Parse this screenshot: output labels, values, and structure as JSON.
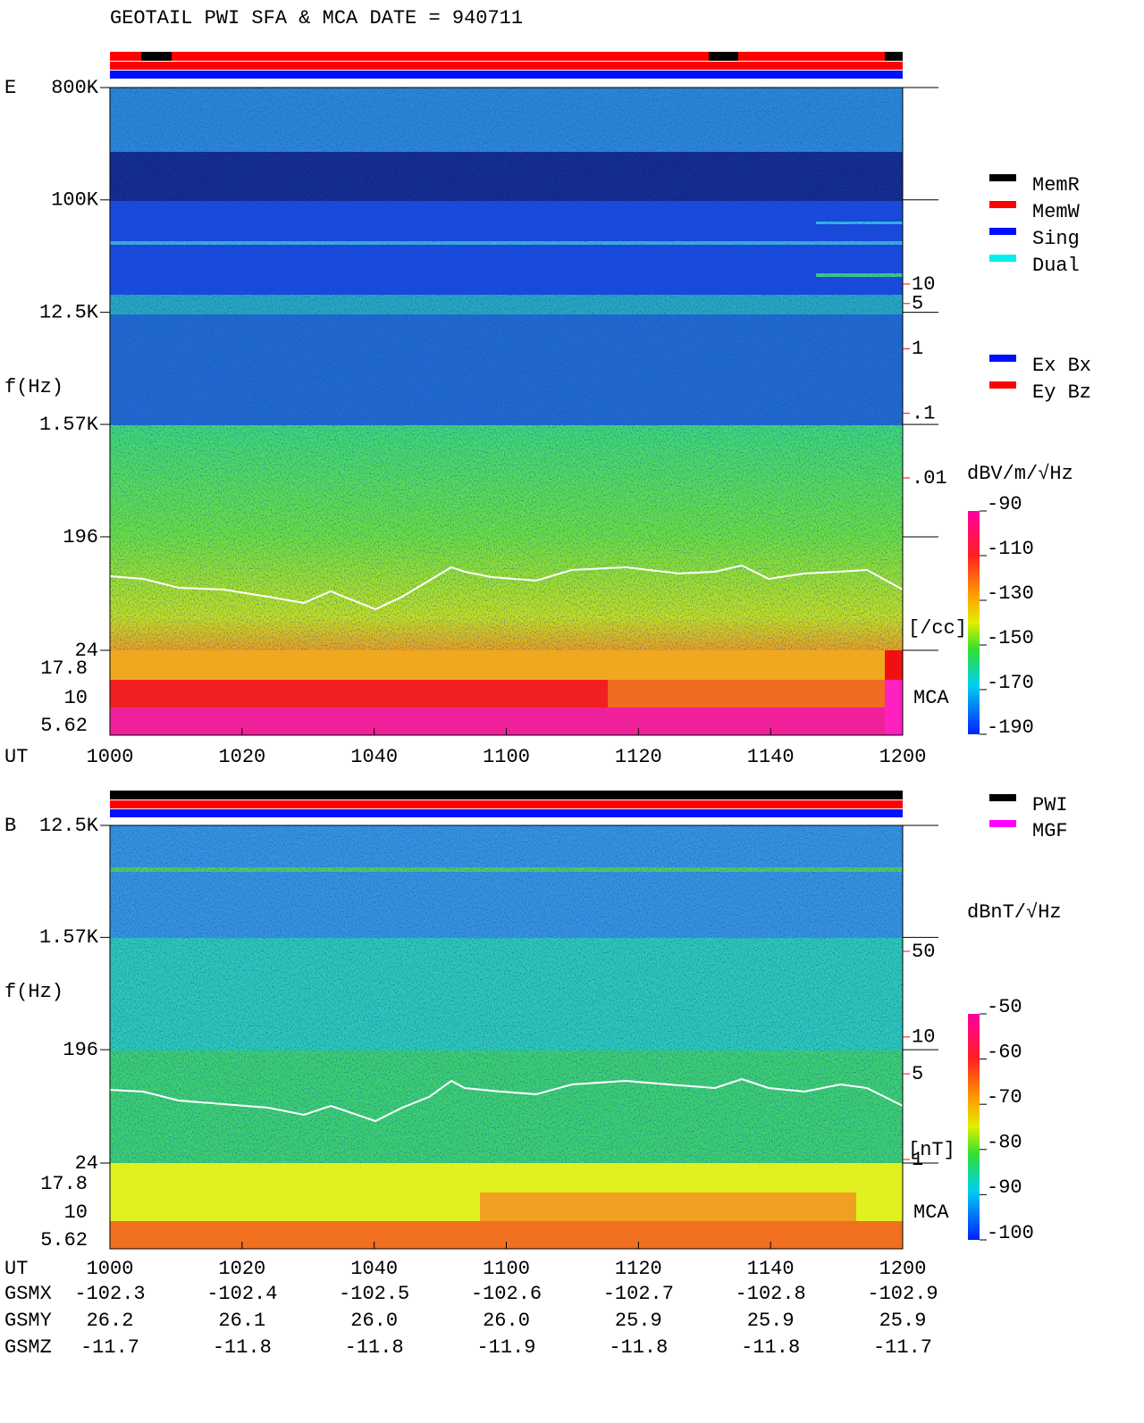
{
  "header": {
    "title": "GEOTAIL  PWI SFA & MCA   DATE = 940711"
  },
  "chart_data": [
    {
      "type": "spectrogram",
      "panel_label": "E",
      "y_label": "f(Hz)",
      "x_label": "UT",
      "log_scale": true,
      "ylim": [
        24,
        800000
      ],
      "yticks": [
        {
          "value": 800000,
          "label": "800K"
        },
        {
          "value": 100000,
          "label": "100K"
        },
        {
          "value": 12500,
          "label": "12.5K"
        },
        {
          "value": 1570,
          "label": "1.57K"
        },
        196,
        24
      ],
      "mca_label": "MCA",
      "mca_channels": [
        17.8,
        10,
        5.62
      ],
      "categories": [
        "1000",
        "1020",
        "1040",
        "1100",
        "1120",
        "1140",
        "1200"
      ],
      "y2_label": "[/cc]",
      "y2lim": [
        0.01,
        10
      ],
      "y2ticks": [
        10,
        5,
        1,
        {
          "value": 0.1,
          "label": ".1"
        },
        {
          "value": 0.01,
          "label": ".01"
        }
      ],
      "colorbar": {
        "label": "dBV/m/√Hz",
        "lim": [
          -190,
          -90
        ],
        "ticks": [
          -90,
          -110,
          -130,
          -150,
          -170,
          -190
        ]
      },
      "legends": [
        [
          {
            "name": "MemR",
            "color": "#000000"
          },
          {
            "name": "MemW",
            "color": "#ff0000"
          },
          {
            "name": "Sing",
            "color": "#0010ff"
          },
          {
            "name": "Dual",
            "color": "#00f0f0"
          }
        ],
        [
          {
            "name": "Ex Bx",
            "color": "#0010ff"
          },
          {
            "name": "Ey Bz",
            "color": "#ff0000"
          }
        ]
      ]
    },
    {
      "type": "spectrogram",
      "panel_label": "B",
      "y_label": "f(Hz)",
      "x_label": "UT",
      "log_scale": true,
      "ylim": [
        24,
        12500
      ],
      "yticks": [
        {
          "value": 12500,
          "label": "12.5K"
        },
        {
          "value": 1570,
          "label": "1.57K"
        },
        196,
        24
      ],
      "mca_label": "MCA",
      "mca_channels": [
        17.8,
        10,
        5.62
      ],
      "categories": [
        "1000",
        "1020",
        "1040",
        "1100",
        "1120",
        "1140",
        "1200"
      ],
      "y2_label": "[nT]",
      "y2lim": [
        1,
        50
      ],
      "y2ticks": [
        50,
        10,
        5,
        1
      ],
      "colorbar": {
        "label": "dBnT/√Hz",
        "lim": [
          -100,
          -50
        ],
        "ticks": [
          -50,
          -60,
          -70,
          -80,
          -90,
          -100
        ]
      },
      "legends": [
        [
          {
            "name": "PWI",
            "color": "#000000"
          },
          {
            "name": "MGF",
            "color": "#ff00ff"
          }
        ]
      ]
    }
  ],
  "position": {
    "rows": [
      {
        "label": "GSMX",
        "values": [
          "-102.3",
          "-102.4",
          "-102.5",
          "-102.6",
          "-102.7",
          "-102.8",
          "-102.9"
        ]
      },
      {
        "label": "GSMY",
        "values": [
          "26.2",
          "26.1",
          "26.0",
          "26.0",
          "25.9",
          "25.9",
          "25.9"
        ]
      },
      {
        "label": "GSMZ",
        "values": [
          "-11.7",
          "-11.8",
          "-11.8",
          "-11.9",
          "-11.8",
          "-11.8",
          "-11.7"
        ]
      }
    ]
  }
}
